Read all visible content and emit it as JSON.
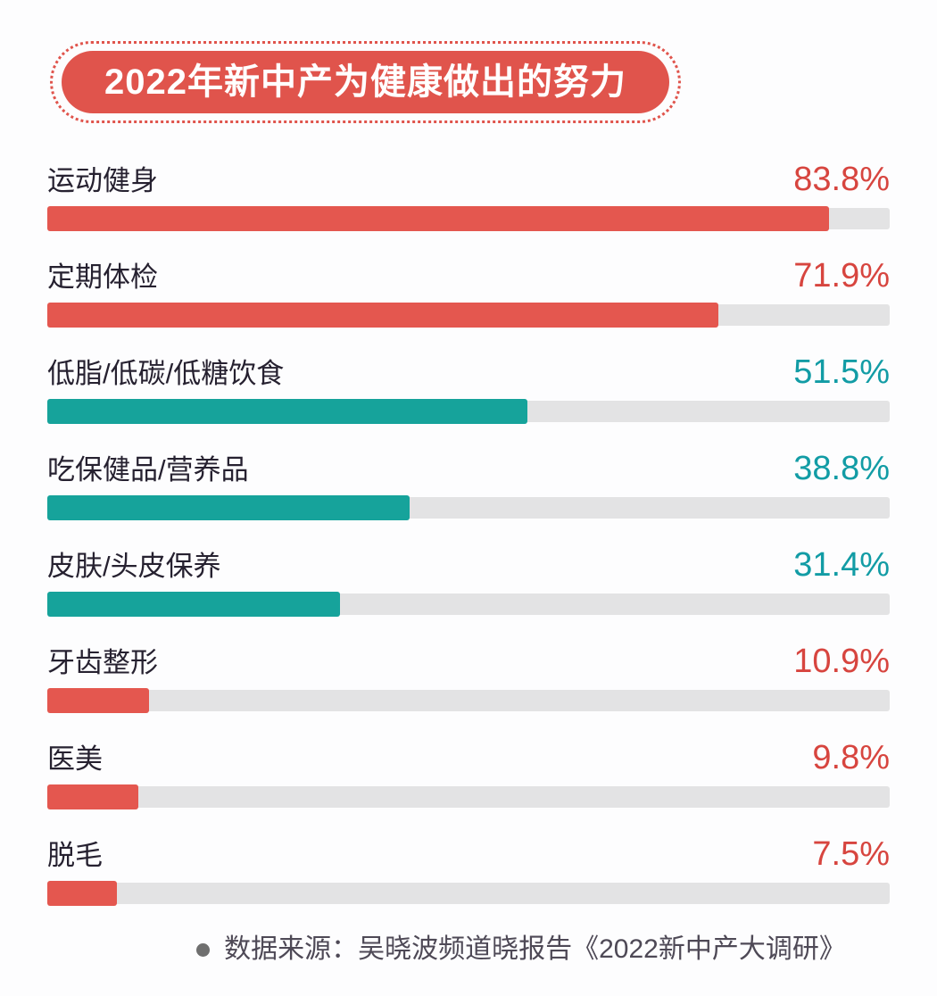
{
  "header": {
    "title": "2022年新中产为健康做出的努力"
  },
  "chart_data": {
    "type": "bar",
    "orientation": "horizontal",
    "title": "2022年新中产为健康做出的努力",
    "unit": "%",
    "categories": [
      "运动健身",
      "定期体检",
      "低脂/低碳/低糖饮食",
      "吃保健品/营养品",
      "皮肤/头皮保养",
      "牙齿整形",
      "医美",
      "脱毛"
    ],
    "values": [
      83.8,
      71.9,
      51.5,
      38.8,
      31.4,
      10.9,
      9.8,
      7.5
    ],
    "value_labels": [
      "83.8%",
      "71.9%",
      "51.5%",
      "38.8%",
      "31.4%",
      "10.9%",
      "9.8%",
      "7.5%"
    ],
    "bar_colors": [
      "red",
      "red",
      "teal",
      "teal",
      "teal",
      "red",
      "red",
      "red"
    ],
    "xlim": [
      0,
      90.3
    ],
    "grid": false,
    "legend": false
  },
  "footer": {
    "source_note": "数据来源：吴晓波频道晓报告《2022新中产大调研》"
  },
  "colors": {
    "accent_red": "#E0544C",
    "bar_red": "#E4574F",
    "bar_teal": "#16A39B",
    "value_red": "#D7453F",
    "value_teal": "#129CA5",
    "track_gray": "#E3E3E4",
    "label_dark": "#262130",
    "source_text": "#4E4956",
    "bullet_gray": "#6F6F6F",
    "title_text": "#FFFFFF",
    "background": "#FDFDFE"
  }
}
